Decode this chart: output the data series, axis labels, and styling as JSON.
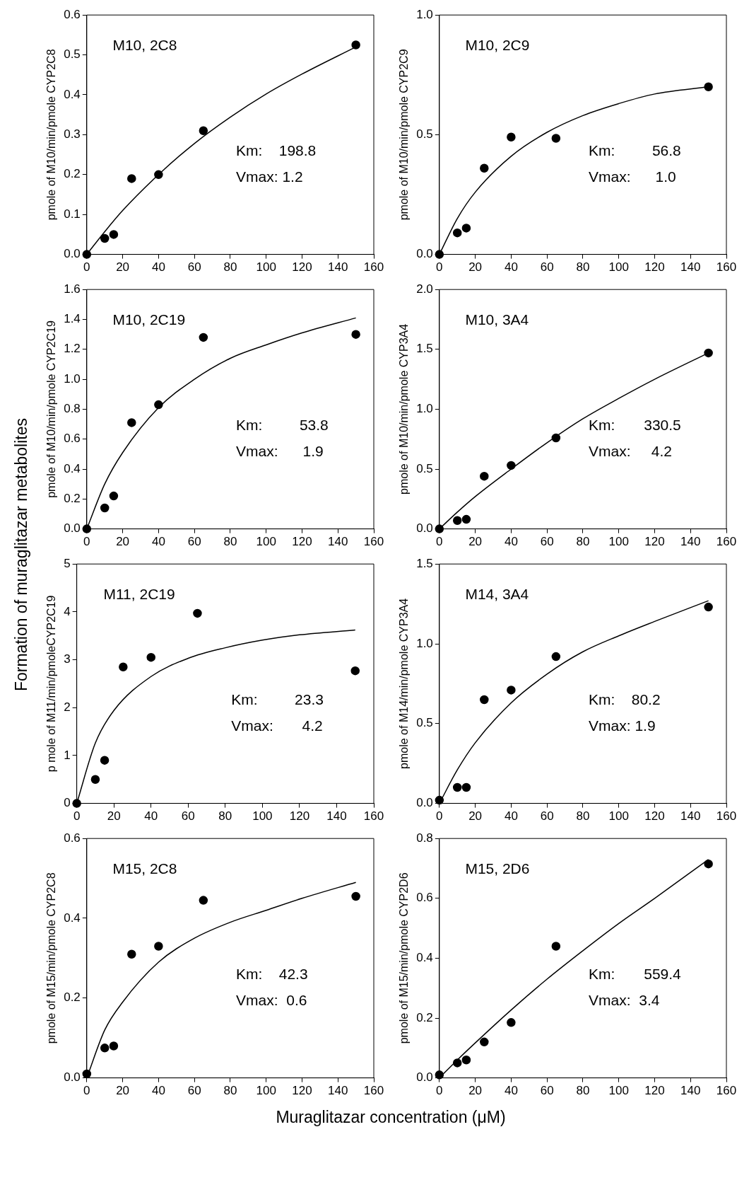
{
  "chart_data": [
    {
      "type": "scatter",
      "title": "M10, 2C8",
      "ylabel": "pmole of M10/min/pmole CYP2C8",
      "xlim": [
        0,
        160
      ],
      "xticks": [
        0,
        20,
        40,
        60,
        80,
        100,
        120,
        140,
        160
      ],
      "ylim": [
        0,
        0.6
      ],
      "yticks": [
        {
          "value": 0,
          "label": "0.0"
        },
        0.1,
        0.2,
        0.3,
        0.4,
        0.5,
        0.6
      ],
      "annotations": [
        "Km:    198.8",
        "Vmax: 1.2",
        "Formation of muraglitazar metabolites"
      ],
      "series": [
        {
          "type": "scatter",
          "marker": "circle",
          "color": "#000000",
          "x": [
            0,
            10,
            15,
            25,
            40,
            65,
            150
          ],
          "values": [
            0,
            0.04,
            0.05,
            0.19,
            0.2,
            0.31,
            0.525
          ]
        },
        {
          "type": "line",
          "marker": "none",
          "color": "#000000",
          "x": [
            0,
            10,
            20,
            40,
            60,
            80,
            100,
            120,
            150
          ],
          "values": [
            0,
            0.057,
            0.11,
            0.2,
            0.278,
            0.344,
            0.402,
            0.452,
            0.52
          ]
        }
      ]
    },
    {
      "type": "scatter",
      "title": "M10, 2C9",
      "ylabel": "pmole of M10/min/pmole CYP2C9",
      "xlim": [
        0,
        160
      ],
      "xticks": [
        0,
        20,
        40,
        60,
        80,
        100,
        120,
        140,
        160
      ],
      "ylim": [
        0,
        1
      ],
      "yticks": [
        {
          "value": 0,
          "label": "0.0"
        },
        0.5,
        {
          "value": 1,
          "label": "1.0"
        }
      ],
      "annotations": [
        "Km:         56.8",
        "Vmax:      1.0"
      ],
      "series": [
        {
          "type": "scatter",
          "marker": "circle",
          "color": "#000000",
          "x": [
            0,
            10,
            15,
            25,
            40,
            65,
            150
          ],
          "values": [
            0,
            0.09,
            0.11,
            0.36,
            0.49,
            0.485,
            0.7
          ]
        },
        {
          "type": "line",
          "marker": "none",
          "color": "#000000",
          "x": [
            0,
            10,
            20,
            40,
            60,
            80,
            100,
            120,
            150
          ],
          "values": [
            0,
            0.15,
            0.26,
            0.41,
            0.51,
            0.58,
            0.63,
            0.67,
            0.7
          ]
        }
      ]
    },
    {
      "type": "scatter",
      "title": "M10, 2C19",
      "ylabel": "pmole of M10/min/pmole CYP2C19",
      "xlim": [
        0,
        160
      ],
      "xticks": [
        0,
        20,
        40,
        60,
        80,
        100,
        120,
        140,
        160
      ],
      "ylim": [
        0,
        1.6
      ],
      "yticks": [
        {
          "value": 0,
          "label": "0.0"
        },
        0.2,
        0.4,
        0.6,
        0.8,
        {
          "value": 1,
          "label": "1.0"
        },
        1.2,
        1.4,
        1.6
      ],
      "annotations": [
        "Km:         53.8",
        "Vmax:      1.9"
      ],
      "series": [
        {
          "type": "scatter",
          "marker": "circle",
          "color": "#000000",
          "x": [
            0,
            10,
            15,
            25,
            40,
            65,
            150
          ],
          "values": [
            0,
            0.14,
            0.22,
            0.71,
            0.83,
            1.28,
            1.3
          ]
        },
        {
          "type": "line",
          "marker": "none",
          "color": "#000000",
          "x": [
            0,
            10,
            20,
            40,
            60,
            80,
            100,
            120,
            150
          ],
          "values": [
            0,
            0.3,
            0.51,
            0.81,
            1,
            1.14,
            1.23,
            1.31,
            1.41
          ]
        }
      ]
    },
    {
      "type": "scatter",
      "title": "M10, 3A4",
      "ylabel": "pmole of M10/min/pmole CYP3A4",
      "xlim": [
        0,
        160
      ],
      "xticks": [
        0,
        20,
        40,
        60,
        80,
        100,
        120,
        140,
        160
      ],
      "ylim": [
        0,
        2
      ],
      "yticks": [
        {
          "value": 0,
          "label": "0.0"
        },
        0.5,
        {
          "value": 1,
          "label": "1.0"
        },
        1.5,
        {
          "value": 2,
          "label": "2.0"
        }
      ],
      "annotations": [
        "Km:       330.5",
        "Vmax:     4.2"
      ],
      "series": [
        {
          "type": "scatter",
          "marker": "circle",
          "color": "#000000",
          "x": [
            0,
            10,
            15,
            25,
            40,
            65,
            150
          ],
          "values": [
            0,
            0.07,
            0.08,
            0.44,
            0.53,
            0.76,
            1.47
          ]
        },
        {
          "type": "line",
          "marker": "none",
          "color": "#000000",
          "x": [
            0,
            10,
            20,
            40,
            60,
            80,
            100,
            120,
            150
          ],
          "values": [
            0,
            0.14,
            0.27,
            0.5,
            0.72,
            0.92,
            1.09,
            1.25,
            1.47
          ]
        }
      ]
    },
    {
      "type": "scatter",
      "title": "M11, 2C19",
      "ylabel": "p mole of M11/min/pmoleCYP2C19",
      "xlim": [
        0,
        160
      ],
      "xticks": [
        0,
        20,
        40,
        60,
        80,
        100,
        120,
        140,
        160
      ],
      "ylim": [
        0,
        5
      ],
      "yticks": [
        0,
        1,
        2,
        3,
        4,
        5
      ],
      "annotations": [
        "Km:         23.3",
        "Vmax:       4.2"
      ],
      "series": [
        {
          "type": "scatter",
          "marker": "circle",
          "color": "#000000",
          "x": [
            0,
            10,
            15,
            25,
            40,
            65,
            150
          ],
          "values": [
            0,
            0.5,
            0.9,
            2.85,
            3.05,
            3.97,
            2.77
          ]
        },
        {
          "type": "line",
          "marker": "none",
          "color": "#000000",
          "x": [
            0,
            10,
            20,
            40,
            60,
            80,
            100,
            120,
            150
          ],
          "values": [
            0,
            1.26,
            1.94,
            2.65,
            3.03,
            3.25,
            3.41,
            3.52,
            3.62
          ]
        }
      ]
    },
    {
      "type": "scatter",
      "title": "M14, 3A4",
      "ylabel": "pmole of M14/min/pmole CYP3A4",
      "xlim": [
        0,
        160
      ],
      "xticks": [
        0,
        20,
        40,
        60,
        80,
        100,
        120,
        140,
        160
      ],
      "ylim": [
        0,
        1.5
      ],
      "yticks": [
        {
          "value": 0,
          "label": "0.0"
        },
        0.5,
        {
          "value": 1,
          "label": "1.0"
        },
        1.5
      ],
      "annotations": [
        "Km:    80.2",
        "Vmax: 1.9"
      ],
      "series": [
        {
          "type": "scatter",
          "marker": "circle",
          "color": "#000000",
          "x": [
            0,
            10,
            15,
            25,
            40,
            65,
            150
          ],
          "values": [
            0.02,
            0.1,
            0.1,
            0.65,
            0.71,
            0.92,
            1.23
          ]
        },
        {
          "type": "line",
          "marker": "none",
          "color": "#000000",
          "x": [
            0,
            10,
            20,
            40,
            60,
            80,
            100,
            120,
            150
          ],
          "values": [
            0,
            0.21,
            0.38,
            0.63,
            0.81,
            0.95,
            1.05,
            1.14,
            1.27
          ]
        }
      ]
    },
    {
      "type": "scatter",
      "title": "M15, 2C8",
      "ylabel": "pmole of M15/min/pmole CYP2C8",
      "xlabel": "Muraglitazar concentration (μM)",
      "xlim": [
        0,
        160
      ],
      "xticks": [
        0,
        20,
        40,
        60,
        80,
        100,
        120,
        140,
        160
      ],
      "ylim": [
        0,
        0.6
      ],
      "yticks": [
        {
          "value": 0,
          "label": "0.0"
        },
        0.2,
        0.4,
        0.6
      ],
      "annotations": [
        "Km:    42.3",
        "Vmax:  0.6"
      ],
      "series": [
        {
          "type": "scatter",
          "marker": "circle",
          "color": "#000000",
          "x": [
            0,
            10,
            15,
            25,
            40,
            65,
            150
          ],
          "values": [
            0.01,
            0.075,
            0.08,
            0.31,
            0.33,
            0.445,
            0.455
          ]
        },
        {
          "type": "line",
          "marker": "none",
          "color": "#000000",
          "x": [
            0,
            10,
            20,
            40,
            60,
            80,
            100,
            120,
            150
          ],
          "values": [
            0,
            0.12,
            0.19,
            0.29,
            0.35,
            0.39,
            0.42,
            0.45,
            0.49
          ]
        }
      ]
    },
    {
      "type": "scatter",
      "title": "M15, 2D6",
      "ylabel": "pmole of M15/min/pmole CYP2D6",
      "xlim": [
        0,
        160
      ],
      "xticks": [
        0,
        20,
        40,
        60,
        80,
        100,
        120,
        140,
        160
      ],
      "ylim": [
        0,
        0.8
      ],
      "yticks": [
        {
          "value": 0,
          "label": "0.0"
        },
        0.2,
        0.4,
        0.6,
        0.8
      ],
      "annotations": [
        "Km:       559.4",
        "Vmax:  3.4"
      ],
      "series": [
        {
          "type": "scatter",
          "marker": "circle",
          "color": "#000000",
          "x": [
            0,
            10,
            15,
            25,
            40,
            65,
            150
          ],
          "values": [
            0.01,
            0.05,
            0.06,
            0.12,
            0.185,
            0.44,
            0.715
          ]
        },
        {
          "type": "line",
          "marker": "none",
          "color": "#000000",
          "x": [
            0,
            10,
            20,
            40,
            60,
            80,
            100,
            120,
            150
          ],
          "values": [
            0,
            0.06,
            0.117,
            0.227,
            0.33,
            0.425,
            0.516,
            0.6,
            0.73
          ]
        }
      ]
    }
  ]
}
